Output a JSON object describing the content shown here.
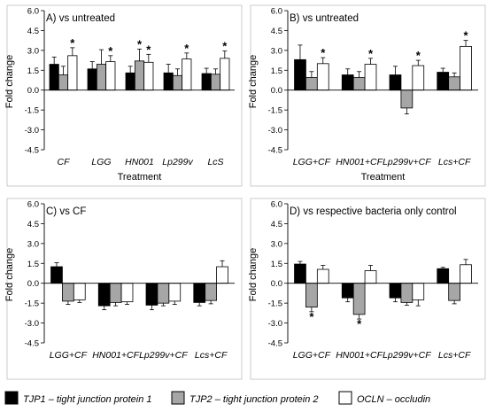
{
  "legend": [
    {
      "series": "TJP1",
      "label": "TJP1 – tight junction protein 1",
      "color": "#000000"
    },
    {
      "series": "TJP2",
      "label": "TJP2 – tight junction protein 2",
      "color": "#a6a6a6"
    },
    {
      "series": "OCLN",
      "label": "OCLN – occludin",
      "color": "#ffffff"
    }
  ],
  "chart_data": [
    {
      "type": "bar",
      "title": "A) vs untreated",
      "xlabel": "Treatment",
      "ylabel": "Fold change",
      "ylim": [
        -4.5,
        6.0
      ],
      "yticks": [
        "6.0",
        "4.5",
        "3.0",
        "1.5",
        "0.0",
        "-1.5",
        "-3.0",
        "-4.5"
      ],
      "categories": [
        "CF",
        "LGG",
        "HN001",
        "Lp299v",
        "LcS"
      ],
      "series": [
        {
          "name": "TJP1",
          "values": [
            1.95,
            1.6,
            1.3,
            1.3,
            1.25
          ],
          "errors": [
            0.55,
            0.55,
            0.5,
            0.65,
            0.4
          ],
          "significant": [
            false,
            false,
            false,
            false,
            false
          ]
        },
        {
          "name": "TJP2",
          "values": [
            1.15,
            1.95,
            2.2,
            1.1,
            1.2
          ],
          "errors": [
            0.65,
            1.1,
            0.9,
            0.5,
            0.4
          ],
          "significant": [
            false,
            false,
            true,
            false,
            false
          ]
        },
        {
          "name": "OCLN",
          "values": [
            2.6,
            2.15,
            2.1,
            2.35,
            2.4
          ],
          "errors": [
            0.6,
            0.45,
            0.6,
            0.45,
            0.55
          ],
          "significant": [
            true,
            true,
            true,
            true,
            true
          ]
        }
      ]
    },
    {
      "type": "bar",
      "title": "B) vs untreated",
      "xlabel": "Treatment",
      "ylabel": "Fold change",
      "ylim": [
        -4.5,
        6.0
      ],
      "yticks": [
        "6.0",
        "4.5",
        "3.0",
        "1.5",
        "0.0",
        "-1.5",
        "-3.0",
        "-4.5"
      ],
      "categories": [
        "LGG+CF",
        "HN001+CF",
        "Lp299v+CF",
        "Lcs+CF"
      ],
      "series": [
        {
          "name": "TJP1",
          "values": [
            2.3,
            1.15,
            1.15,
            1.35
          ],
          "errors": [
            1.1,
            0.45,
            0.65,
            0.3
          ],
          "significant": [
            false,
            false,
            false,
            false
          ]
        },
        {
          "name": "TJP2",
          "values": [
            0.95,
            0.95,
            -1.35,
            1.0
          ],
          "errors": [
            0.45,
            0.45,
            0.45,
            0.3
          ],
          "significant": [
            false,
            false,
            false,
            false
          ]
        },
        {
          "name": "OCLN",
          "values": [
            2.0,
            1.95,
            1.85,
            3.3
          ],
          "errors": [
            0.45,
            0.45,
            0.4,
            0.45
          ],
          "significant": [
            true,
            true,
            true,
            true
          ]
        }
      ]
    },
    {
      "type": "bar",
      "title": "C) vs CF",
      "xlabel": "",
      "ylabel": "Fold change",
      "ylim": [
        -4.5,
        6.0
      ],
      "yticks": [
        "6.0",
        "4.5",
        "3.0",
        "1.5",
        "0.0",
        "-1.5",
        "-3.0",
        "-4.5"
      ],
      "categories": [
        "LGG+CF",
        "HN001+CF",
        "Lp299v+CF",
        "Lcs+CF"
      ],
      "series": [
        {
          "name": "TJP1",
          "values": [
            1.25,
            -1.7,
            -1.65,
            -1.45
          ],
          "errors": [
            0.3,
            0.3,
            0.35,
            0.25
          ],
          "significant": [
            false,
            false,
            false,
            false
          ]
        },
        {
          "name": "TJP2",
          "values": [
            -1.35,
            -1.45,
            -1.5,
            -1.3
          ],
          "errors": [
            0.25,
            0.25,
            0.2,
            0.25
          ],
          "significant": [
            false,
            false,
            false,
            false
          ]
        },
        {
          "name": "OCLN",
          "values": [
            -1.25,
            -1.4,
            -1.35,
            1.25
          ],
          "errors": [
            0.2,
            0.2,
            0.25,
            0.45
          ],
          "significant": [
            false,
            false,
            false,
            false
          ]
        }
      ]
    },
    {
      "type": "bar",
      "title": "D) vs respective bacteria only control",
      "xlabel": "",
      "ylabel": "Fold change",
      "ylim": [
        -4.5,
        6.0
      ],
      "yticks": [
        "6.0",
        "4.5",
        "3.0",
        "1.5",
        "0.0",
        "-1.5",
        "-3.0",
        "-4.5"
      ],
      "categories": [
        "LGG+CF",
        "HN001+CF",
        "Lp299v+CF",
        "Lcs+CF"
      ],
      "series": [
        {
          "name": "TJP1",
          "values": [
            1.45,
            -1.1,
            -1.1,
            1.1
          ],
          "errors": [
            0.2,
            0.3,
            0.3,
            0.1
          ],
          "significant": [
            false,
            false,
            false,
            false
          ]
        },
        {
          "name": "TJP2",
          "values": [
            -1.8,
            -2.35,
            -1.45,
            -1.3
          ],
          "errors": [
            0.35,
            0.35,
            0.2,
            0.25
          ],
          "significant": [
            true,
            true,
            false,
            false
          ]
        },
        {
          "name": "OCLN",
          "values": [
            1.05,
            0.95,
            -1.25,
            1.4
          ],
          "errors": [
            0.3,
            0.4,
            0.45,
            0.4
          ],
          "significant": [
            false,
            false,
            false,
            false
          ]
        }
      ]
    }
  ]
}
